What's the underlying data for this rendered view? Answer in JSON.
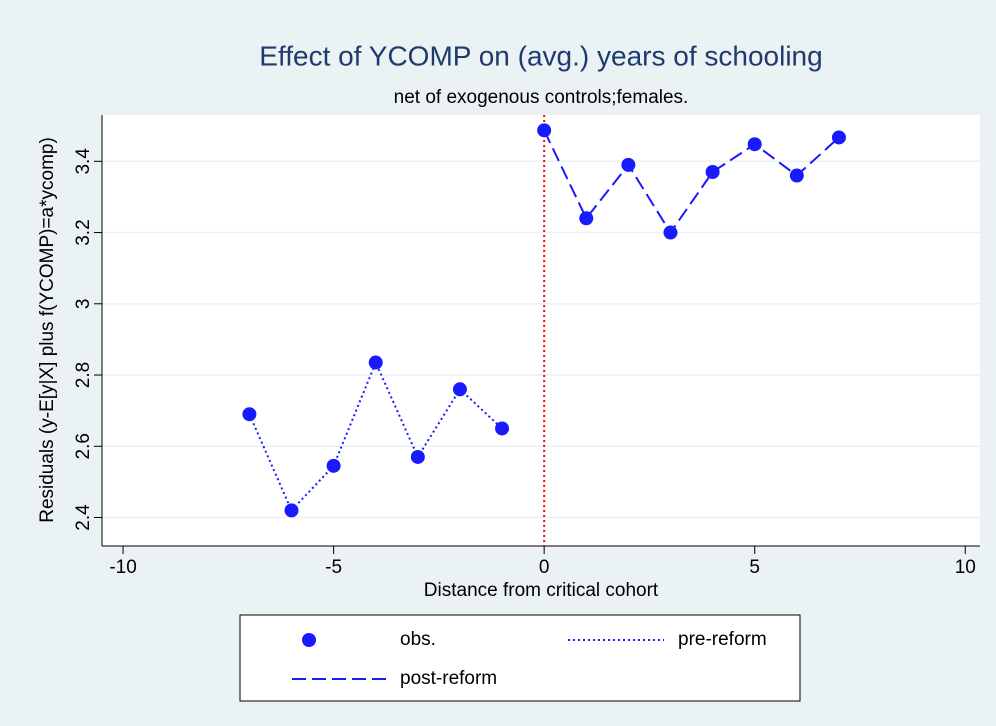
{
  "chart_data": {
    "type": "line",
    "title": "Effect of YCOMP on (avg.) years of schooling",
    "subtitle": "net of exogenous controls;females.",
    "x_label": "Distance from critical cohort",
    "y_label": "Residuals (y-E[y|X] plus f(YCOMP)=a*ycomp)",
    "xlim": [
      -10.5,
      10.35
    ],
    "ylim": [
      2.32,
      3.53
    ],
    "xticks": [
      -10,
      -5,
      0,
      5,
      10
    ],
    "yticks": [
      2.4,
      2.6,
      2.8,
      3,
      3.2,
      3.4
    ],
    "grid": true,
    "xline": {
      "value": 0,
      "color": "#ff0000"
    },
    "series": [
      {
        "name": "obs.",
        "color": "#1a1aff",
        "style": "marker",
        "x": [
          -7,
          -6,
          -5,
          -4,
          -3,
          -2,
          -1,
          0,
          1,
          2,
          3,
          4,
          5,
          6,
          7
        ],
        "values": [
          2.69,
          2.42,
          2.545,
          2.835,
          2.57,
          2.76,
          2.65,
          3.487,
          3.24,
          3.39,
          3.2,
          3.37,
          3.448,
          3.36,
          3.467
        ]
      },
      {
        "name": "pre-reform",
        "color": "#1a1aff",
        "style": "dotted",
        "x": [
          -7,
          -6,
          -5,
          -4,
          -3,
          -2,
          -1
        ],
        "values": [
          2.69,
          2.42,
          2.545,
          2.835,
          2.57,
          2.76,
          2.65
        ]
      },
      {
        "name": "post-reform",
        "color": "#1a1aff",
        "style": "dashed",
        "x": [
          0,
          1,
          2,
          3,
          4,
          5,
          6,
          7
        ],
        "values": [
          3.487,
          3.24,
          3.39,
          3.2,
          3.37,
          3.448,
          3.36,
          3.467
        ]
      }
    ]
  }
}
